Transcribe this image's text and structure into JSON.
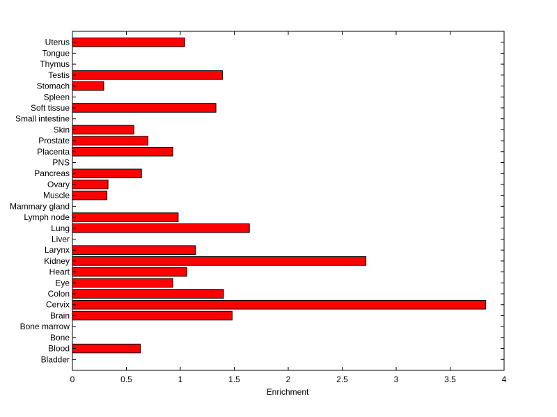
{
  "chart_data": {
    "type": "bar",
    "orientation": "horizontal",
    "title": "",
    "xlabel": "Enrichment",
    "ylabel": "",
    "xlim": [
      0,
      4
    ],
    "xticks": [
      "0",
      "0.5",
      "1",
      "1.5",
      "2",
      "2.5",
      "3",
      "3.5",
      "4"
    ],
    "grid": false,
    "categories": [
      "Bladder",
      "Blood",
      "Bone",
      "Bone marrow",
      "Brain",
      "Cervix",
      "Colon",
      "Eye",
      "Heart",
      "Kidney",
      "Larynx",
      "Liver",
      "Lung",
      "Lymph node",
      "Mammary gland",
      "Muscle",
      "Ovary",
      "Pancreas",
      "PNS",
      "Placenta",
      "Prostate",
      "Skin",
      "Small intestine",
      "Soft tissue",
      "Spleen",
      "Stomach",
      "Testis",
      "Thymus",
      "Tongue",
      "Uterus"
    ],
    "values": [
      0,
      0.63,
      0,
      0,
      1.48,
      3.83,
      1.4,
      0.93,
      1.06,
      2.72,
      1.14,
      0,
      1.64,
      0.98,
      0,
      0.32,
      0.33,
      0.64,
      0,
      0.93,
      0.7,
      0.57,
      0,
      1.33,
      0,
      0.29,
      1.39,
      0,
      0,
      1.04
    ],
    "bar_color": "#ff0000",
    "edge_color": "#000000"
  }
}
